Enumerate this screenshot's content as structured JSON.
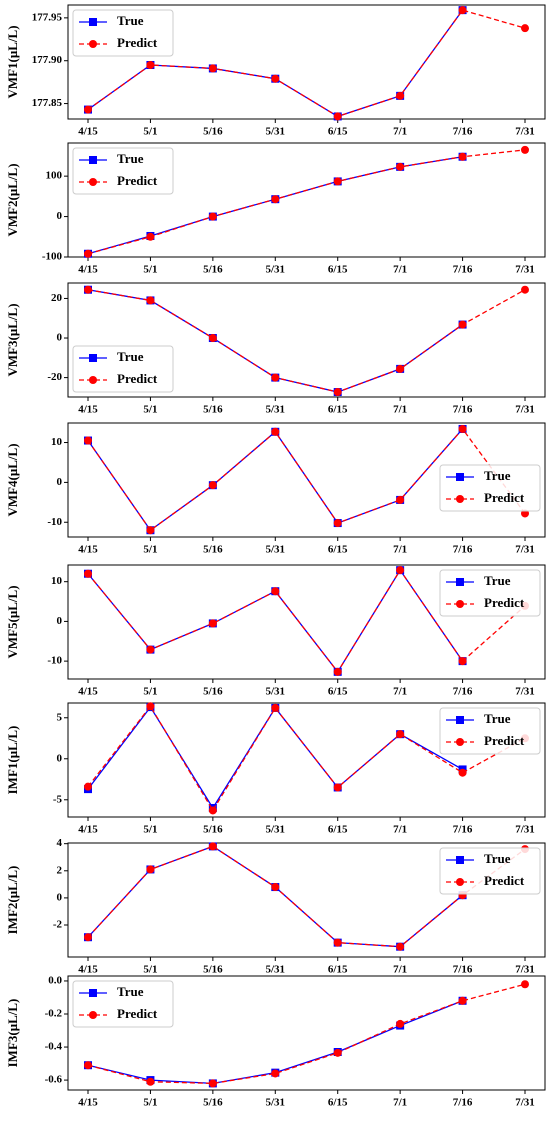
{
  "chart_data": [
    {
      "type": "line",
      "ylabel": "VMF1(μL/L)",
      "categories": [
        "4/15",
        "5/1",
        "5/16",
        "5/31",
        "6/15",
        "7/1",
        "7/16",
        "7/31"
      ],
      "series": [
        {
          "name": "True",
          "color": "#0000ff",
          "values": [
            177.843,
            177.895,
            177.891,
            177.879,
            177.835,
            177.859,
            177.959,
            null
          ]
        },
        {
          "name": "Predict",
          "color": "#ff0000",
          "values": [
            177.843,
            177.895,
            177.891,
            177.879,
            177.835,
            177.859,
            177.959,
            177.938
          ]
        }
      ],
      "ylim": [
        177.832,
        177.965
      ],
      "yticks": [
        177.85,
        {
          "value": 177.9,
          "label": "177.90"
        },
        177.95
      ],
      "legend": "upper left"
    },
    {
      "type": "line",
      "ylabel": "VMF2(μL/L)",
      "categories": [
        "4/15",
        "5/1",
        "5/16",
        "5/31",
        "6/15",
        "7/1",
        "7/16",
        "7/31"
      ],
      "series": [
        {
          "name": "True",
          "color": "#0000ff",
          "values": [
            -92,
            -48,
            0,
            43,
            87,
            123,
            148,
            null
          ]
        },
        {
          "name": "Predict",
          "color": "#ff0000",
          "values": [
            -92,
            -50,
            0,
            43,
            87,
            123,
            148,
            165
          ]
        }
      ],
      "ylim": [
        -100,
        182
      ],
      "yticks": [
        -100,
        0,
        100
      ],
      "legend": "upper left"
    },
    {
      "type": "line",
      "ylabel": "VMF3(μL/L)",
      "categories": [
        "4/15",
        "5/1",
        "5/16",
        "5/31",
        "6/15",
        "7/1",
        "7/16",
        "7/31"
      ],
      "series": [
        {
          "name": "True",
          "color": "#0000ff",
          "values": [
            24.4,
            19,
            0,
            -20,
            -27.3,
            -15.6,
            6.8,
            null
          ]
        },
        {
          "name": "Predict",
          "color": "#ff0000",
          "values": [
            24.4,
            19,
            0,
            -20,
            -27.3,
            -15.6,
            6.8,
            24.4
          ]
        }
      ],
      "ylim": [
        -29.8,
        27.8
      ],
      "yticks": [
        -20,
        0,
        20
      ],
      "legend": "lower left"
    },
    {
      "type": "line",
      "ylabel": "VMF4(μL/L)",
      "categories": [
        "4/15",
        "5/1",
        "5/16",
        "5/31",
        "6/15",
        "7/1",
        "7/16",
        "7/31"
      ],
      "series": [
        {
          "name": "True",
          "color": "#0000ff",
          "values": [
            10.5,
            -12,
            -0.7,
            12.7,
            -10.2,
            -4.4,
            13.4,
            null
          ]
        },
        {
          "name": "Predict",
          "color": "#ff0000",
          "values": [
            10.5,
            -12,
            -0.7,
            12.7,
            -10.2,
            -4.4,
            13.4,
            -7.8
          ]
        }
      ],
      "ylim": [
        -13.7,
        14.9
      ],
      "yticks": [
        -10,
        0,
        10
      ],
      "legend": "center right"
    },
    {
      "type": "line",
      "ylabel": "VMF5(μL/L)",
      "categories": [
        "4/15",
        "5/1",
        "5/16",
        "5/31",
        "6/15",
        "7/1",
        "7/16",
        "7/31"
      ],
      "series": [
        {
          "name": "True",
          "color": "#0000ff",
          "values": [
            12,
            -7.1,
            -0.5,
            7.6,
            -12.7,
            12.9,
            -10,
            null
          ]
        },
        {
          "name": "Predict",
          "color": "#ff0000",
          "values": [
            12,
            -7.1,
            -0.5,
            7.6,
            -12.7,
            12.9,
            -10,
            3.9
          ]
        }
      ],
      "ylim": [
        -14.5,
        14.2
      ],
      "yticks": [
        -10,
        0,
        10
      ],
      "legend": "upper right"
    },
    {
      "type": "line",
      "ylabel": "IMF1(μL/L)",
      "categories": [
        "4/15",
        "5/1",
        "5/16",
        "5/31",
        "6/15",
        "7/1",
        "7/16",
        "7/31"
      ],
      "series": [
        {
          "name": "True",
          "color": "#0000ff",
          "values": [
            -3.7,
            6.3,
            -6,
            6.2,
            -3.5,
            3,
            -1.3,
            null
          ]
        },
        {
          "name": "Predict",
          "color": "#ff0000",
          "values": [
            -3.4,
            6.4,
            -6.3,
            6.2,
            -3.5,
            3,
            -1.7,
            2.5
          ]
        }
      ],
      "ylim": [
        -7.1,
        6.8
      ],
      "yticks": [
        -5,
        0,
        5
      ],
      "legend": "upper right"
    },
    {
      "type": "line",
      "ylabel": "IMF2(μL/L)",
      "categories": [
        "4/15",
        "5/1",
        "5/16",
        "5/31",
        "6/15",
        "7/1",
        "7/16",
        "7/31"
      ],
      "series": [
        {
          "name": "True",
          "color": "#0000ff",
          "values": [
            -2.9,
            2.1,
            3.8,
            0.8,
            -3.3,
            -3.6,
            0.2,
            null
          ]
        },
        {
          "name": "Predict",
          "color": "#ff0000",
          "values": [
            -2.9,
            2.1,
            3.8,
            0.8,
            -3.3,
            -3.6,
            0.2,
            3.6
          ]
        }
      ],
      "ylim": [
        -4.36,
        4.05
      ],
      "yticks": [
        -2,
        0,
        2,
        4
      ],
      "legend": "upper right"
    },
    {
      "type": "line",
      "ylabel": "IMF3(μL/L)",
      "categories": [
        "4/15",
        "5/1",
        "5/16",
        "5/31",
        "6/15",
        "7/1",
        "7/16",
        "7/31"
      ],
      "series": [
        {
          "name": "True",
          "color": "#0000ff",
          "values": [
            -0.51,
            -0.6,
            -0.62,
            -0.555,
            -0.43,
            -0.27,
            -0.12,
            null
          ]
        },
        {
          "name": "Predict",
          "color": "#ff0000",
          "values": [
            -0.51,
            -0.61,
            -0.62,
            -0.56,
            -0.435,
            -0.26,
            -0.12,
            -0.02
          ]
        }
      ],
      "ylim": [
        -0.66,
        0.03
      ],
      "yticks": [
        -0.6,
        -0.4,
        -0.2,
        {
          "value": 0,
          "label": "0.0"
        }
      ],
      "legend": "upper left"
    }
  ]
}
